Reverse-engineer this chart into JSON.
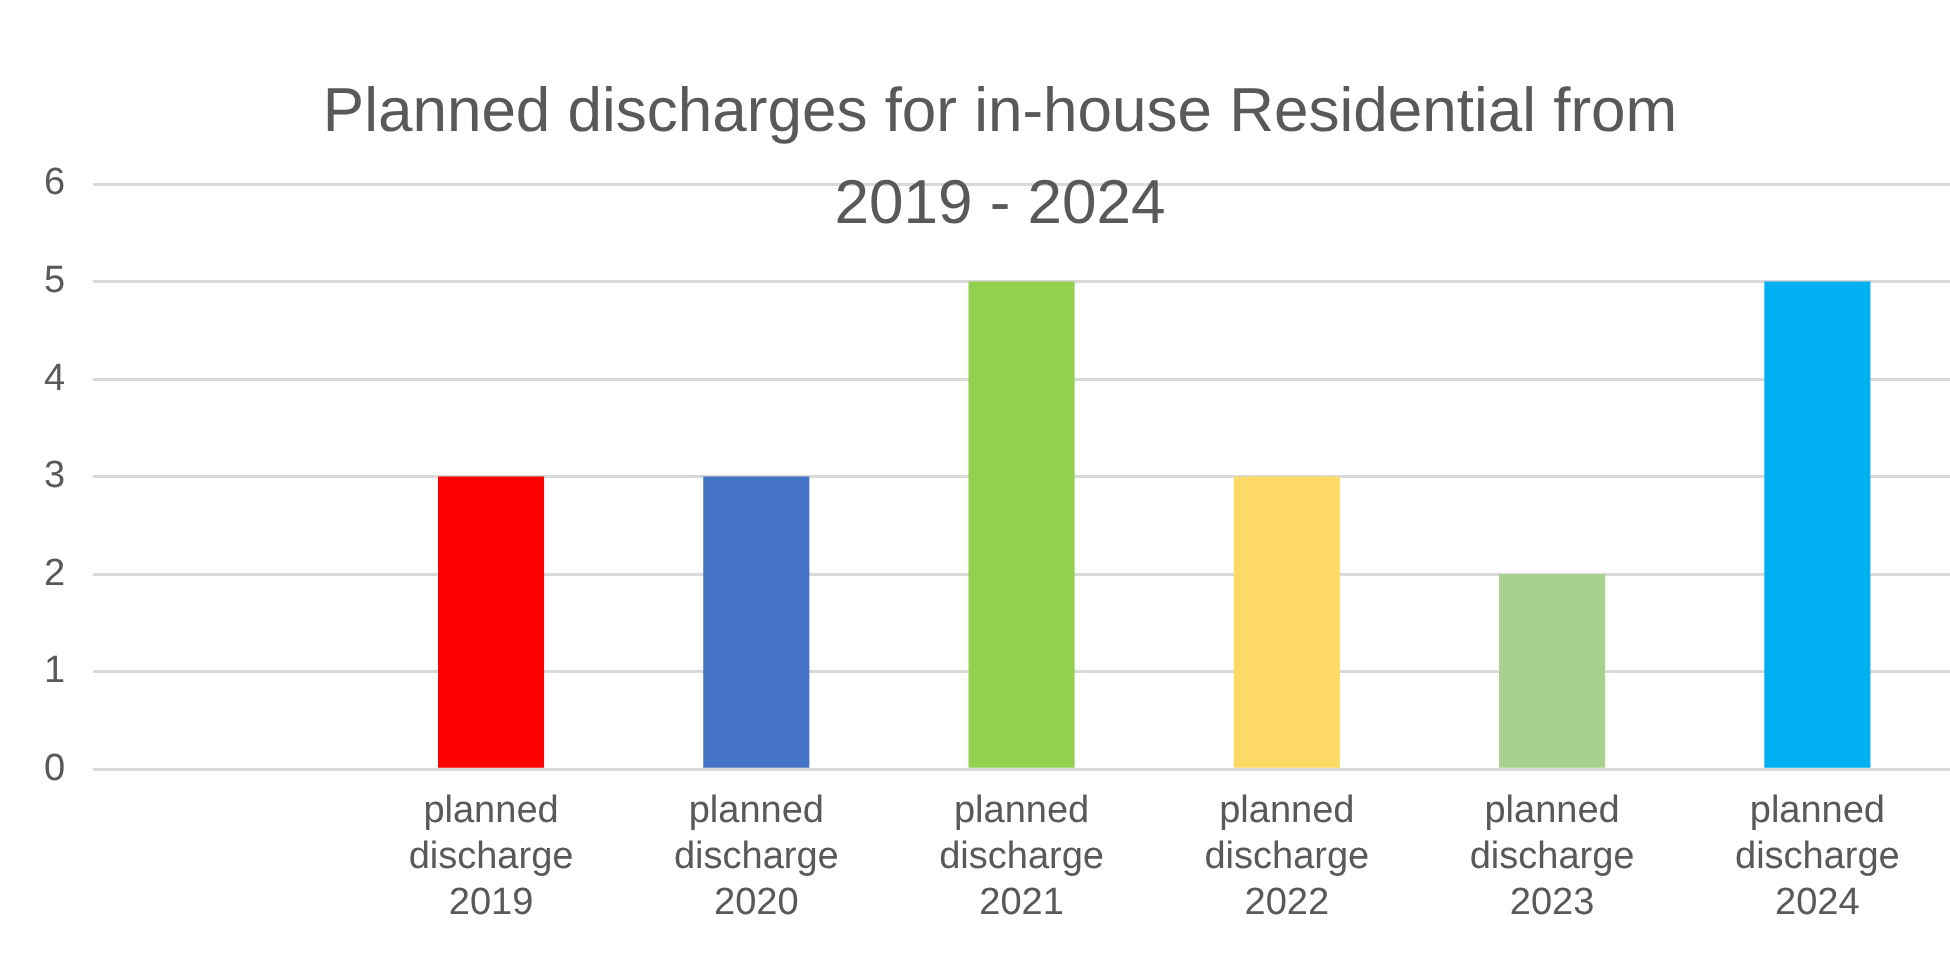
{
  "chart_data": {
    "type": "bar",
    "title": "Planned discharges for in-house Residential from 2019 - 2024",
    "categories": [
      null,
      "planned discharge 2019",
      "planned discharge 2020",
      "planned discharge 2021",
      "planned discharge 2022",
      "planned discharge 2023",
      "planned discharge 2024"
    ],
    "values": [
      null,
      3,
      3,
      5,
      3,
      2,
      5
    ],
    "colors": [
      "#ff0000",
      "#ff0000",
      "#4472c4",
      "#92d050",
      "#ffd966",
      "#a9d18e",
      "#00b0f0"
    ],
    "ylim": [
      0,
      6
    ],
    "yticks": [
      0,
      1,
      2,
      3,
      4,
      5,
      6
    ],
    "grid": "y",
    "legend": false
  }
}
